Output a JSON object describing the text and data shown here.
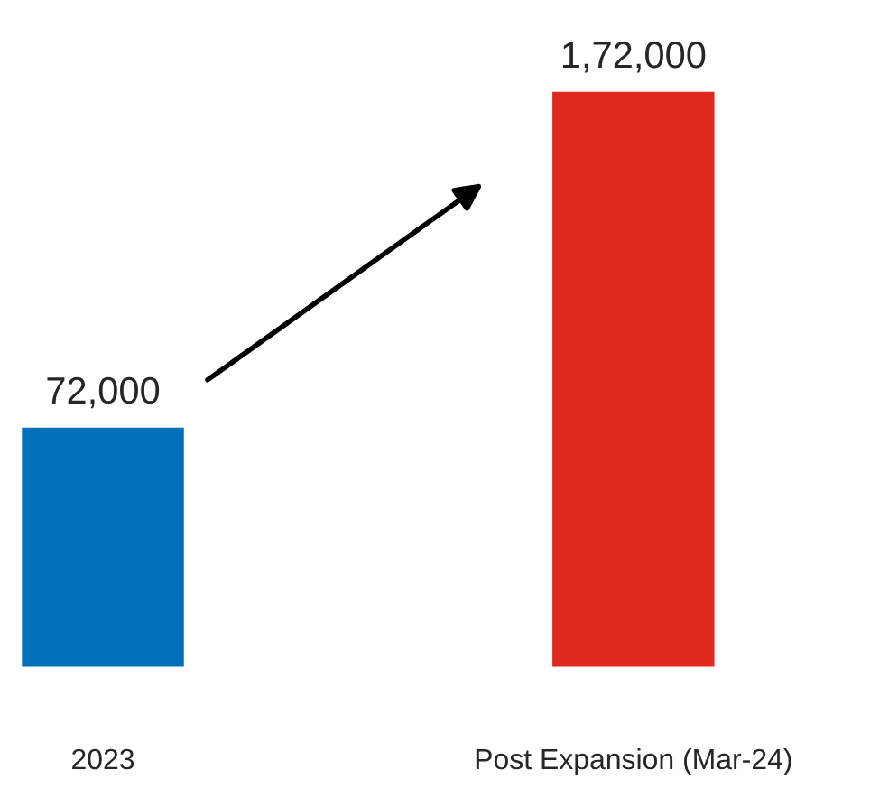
{
  "chart_data": {
    "type": "bar",
    "categories": [
      "2023",
      "Post Expansion (Mar-24)"
    ],
    "values": [
      72000,
      172000
    ],
    "colors": [
      "#0070b8",
      "#e0281e"
    ],
    "value_labels": [
      "72,000",
      "1,72,000"
    ],
    "grid": false,
    "legend": false
  }
}
